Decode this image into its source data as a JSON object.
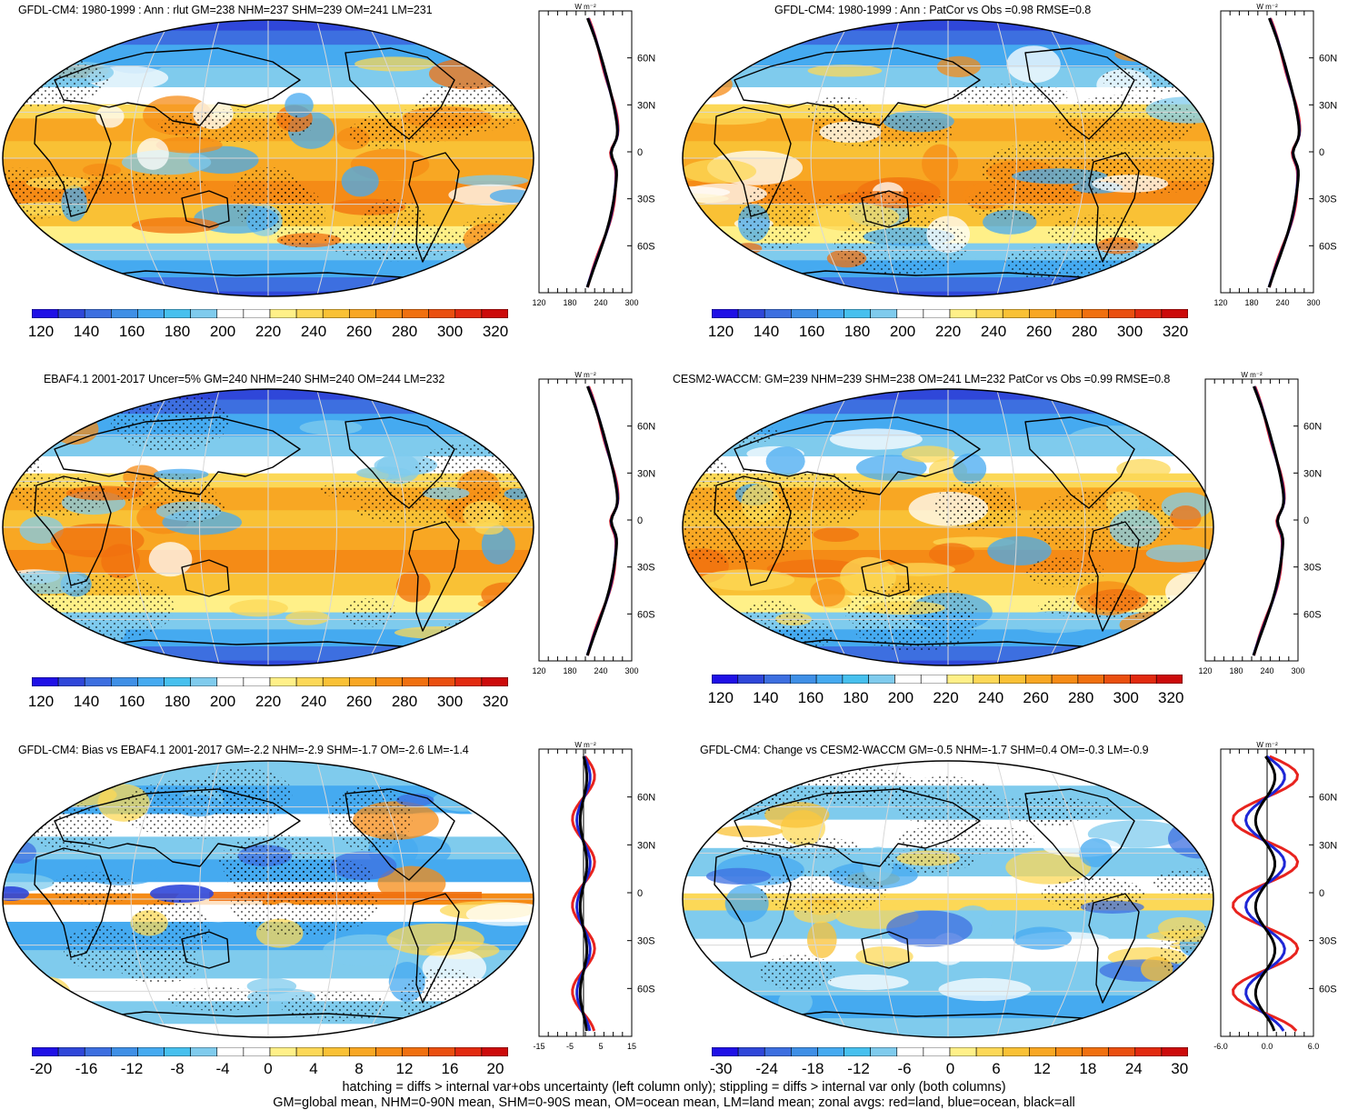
{
  "panels": [
    {
      "title": "GFDL-CM4: 1980-1999 : Ann : rlut GM=238 NHM=237 SHM=239 OM=241 LM=231",
      "kind": "abs",
      "colorbar_labels": [
        "120",
        "140",
        "160",
        "180",
        "200",
        "220",
        "240",
        "260",
        "280",
        "300",
        "320"
      ],
      "zonal": {
        "unit": "W m⁻²",
        "x_ticks": [
          "120",
          "180",
          "240",
          "300"
        ],
        "y_ticks": [
          "60N",
          "30N",
          "0",
          "30S",
          "60S"
        ]
      }
    },
    {
      "title": "GFDL-CM4: 1980-1999 : Ann : PatCor vs Obs =0.98 RMSE=0.8",
      "kind": "abs",
      "colorbar_labels": [
        "120",
        "140",
        "160",
        "180",
        "200",
        "220",
        "240",
        "260",
        "280",
        "300",
        "320"
      ],
      "zonal": {
        "unit": "W m⁻²",
        "x_ticks": [
          "120",
          "180",
          "240",
          "300"
        ],
        "y_ticks": [
          "60N",
          "30N",
          "0",
          "30S",
          "60S"
        ]
      }
    },
    {
      "title": "EBAF4.1 2001-2017 Uncer=5% GM=240 NHM=240 SHM=240 OM=244 LM=232",
      "kind": "abs",
      "colorbar_labels": [
        "120",
        "140",
        "160",
        "180",
        "200",
        "220",
        "240",
        "260",
        "280",
        "300",
        "320"
      ],
      "zonal": {
        "unit": "W m⁻²",
        "x_ticks": [
          "120",
          "180",
          "240",
          "300"
        ],
        "y_ticks": [
          "60N",
          "30N",
          "0",
          "30S",
          "60S"
        ]
      }
    },
    {
      "title": "CESM2-WACCM: GM=239 NHM=239 SHM=238 OM=241 LM=232 PatCor vs Obs =0.99 RMSE=0.8",
      "kind": "abs",
      "colorbar_labels": [
        "120",
        "140",
        "160",
        "180",
        "200",
        "220",
        "240",
        "260",
        "280",
        "300",
        "320"
      ],
      "zonal": {
        "unit": "W m⁻²",
        "x_ticks": [
          "120",
          "180",
          "240",
          "300"
        ],
        "y_ticks": [
          "60N",
          "30N",
          "0",
          "30S",
          "60S"
        ]
      }
    },
    {
      "title": "GFDL-CM4: Bias vs EBAF4.1 2001-2017 GM=-2.2 NHM=-2.9 SHM=-1.7 OM=-2.6 LM=-1.4",
      "kind": "bias",
      "colorbar_labels": [
        "-20",
        "-16",
        "-12",
        "-8",
        "-4",
        "0",
        "4",
        "8",
        "12",
        "16",
        "20"
      ],
      "zonal": {
        "unit": "W m⁻²",
        "x_ticks": [
          "-15",
          "-5",
          "5",
          "15"
        ],
        "y_ticks": [
          "60N",
          "30N",
          "0",
          "30S",
          "60S"
        ]
      }
    },
    {
      "title": "GFDL-CM4: Change vs CESM2-WACCM GM=-0.5 NHM=-1.7 SHM=0.4 OM=-0.3 LM=-0.9",
      "kind": "change",
      "colorbar_labels": [
        "-30",
        "-24",
        "-18",
        "-12",
        "-6",
        "0",
        "6",
        "12",
        "18",
        "24",
        "30"
      ],
      "zonal": {
        "unit": "W m⁻²",
        "x_ticks": [
          "-6.0",
          "0.0",
          "6.0"
        ],
        "y_ticks": [
          "60N",
          "30N",
          "0",
          "30S",
          "60S"
        ]
      }
    }
  ],
  "colors": {
    "palette": [
      "#1f10e6",
      "#2f47d9",
      "#3d6fe0",
      "#3f8fe6",
      "#45aaf0",
      "#47c0ee",
      "#7fcbed",
      "#ffffff",
      "#ffffff",
      "#fff088",
      "#fcd857",
      "#f9c135",
      "#f8a723",
      "#f58b16",
      "#f0700f",
      "#ea4f0f",
      "#e22a0f",
      "#cc0a0a"
    ],
    "land_line": "#e8231e",
    "ocean_line": "#1d26d6",
    "all_line": "#000000"
  },
  "footnote": {
    "line1": "hatching = diffs > internal var+obs uncertainty (left column only); stippling = diffs > internal var only (both columns)",
    "line2": "GM=global mean, NHM=0-90N mean, SHM=0-90S mean, OM=ocean mean, LM=land mean; zonal avgs: red=land, blue=ocean, black=all"
  }
}
